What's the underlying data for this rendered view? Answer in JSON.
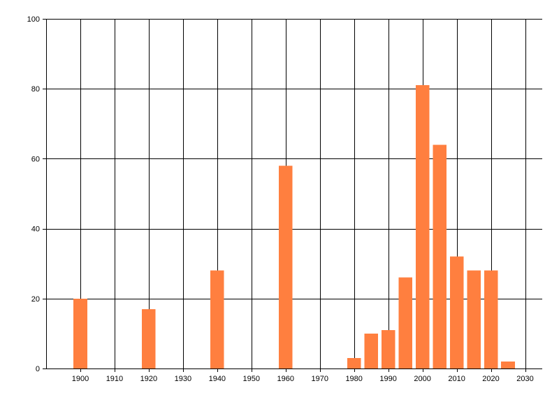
{
  "chart_data": {
    "type": "bar",
    "title": "",
    "xlabel": "",
    "ylabel": "",
    "xlim": [
      1890,
      2035
    ],
    "ylim": [
      0,
      100
    ],
    "x_ticks": [
      1900,
      1910,
      1920,
      1930,
      1940,
      1950,
      1960,
      1970,
      1980,
      1990,
      2000,
      2010,
      2020,
      2030
    ],
    "y_ticks": [
      0,
      20,
      40,
      60,
      80,
      100
    ],
    "grid": true,
    "bar_width": 4,
    "bar_color": "#ff7f3f",
    "series": [
      {
        "x": [
          1900,
          1920,
          1940,
          1960,
          1980,
          1985,
          1990,
          1995,
          2000,
          2005,
          2010,
          2015,
          2020,
          2025
        ],
        "values": [
          20,
          17,
          28,
          58,
          3,
          10,
          11,
          26,
          81,
          64,
          32,
          28,
          28,
          2
        ]
      }
    ]
  }
}
